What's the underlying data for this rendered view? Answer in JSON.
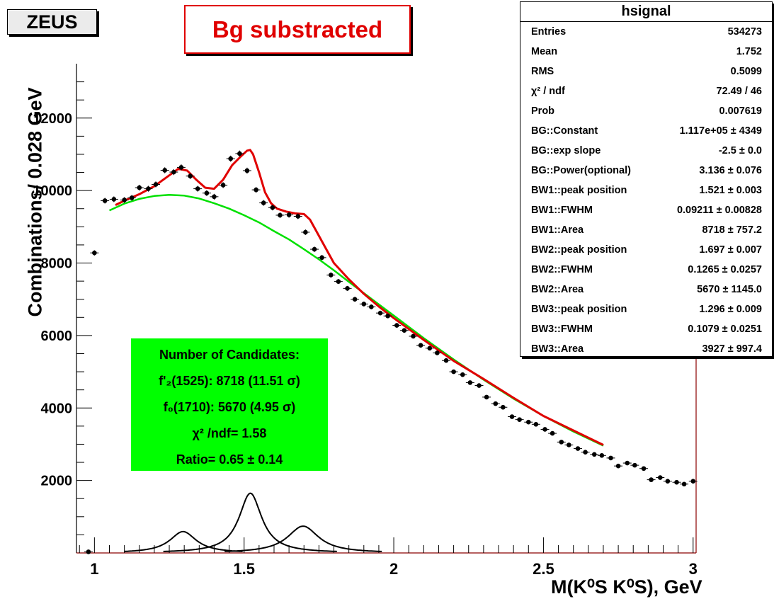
{
  "experiment_label": "ZEUS",
  "title": "Bg substracted",
  "stats_box": {
    "name": "hsignal",
    "rows": [
      {
        "key": "Entries",
        "value": "534273"
      },
      {
        "key": "Mean",
        "value": "1.752"
      },
      {
        "key": "RMS",
        "value": "0.5099"
      },
      {
        "key": "χ² / ndf",
        "value": "72.49 / 46"
      },
      {
        "key": "Prob",
        "value": "0.007619"
      },
      {
        "key": "BG::Constant",
        "value": "1.117e+05 ± 4349"
      },
      {
        "key": "BG::exp slope",
        "value": "-2.5 ± 0.0"
      },
      {
        "key": "BG::Power(optional)",
        "value": "3.136 ± 0.076"
      },
      {
        "key": "BW1::peak position",
        "value": "1.521 ± 0.003"
      },
      {
        "key": "BW1::FWHM",
        "value": "0.09211 ± 0.00828"
      },
      {
        "key": "BW1::Area",
        "value": "8718 ± 757.2"
      },
      {
        "key": "BW2::peak position",
        "value": "1.697 ± 0.007"
      },
      {
        "key": "BW2::FWHM",
        "value": "0.1265 ± 0.0257"
      },
      {
        "key": "BW2::Area",
        "value": "5670 ± 1145.0"
      },
      {
        "key": "BW3::peak position",
        "value": "1.296 ± 0.009"
      },
      {
        "key": "BW3::FWHM",
        "value": "0.1079 ± 0.0251"
      },
      {
        "key": "BW3::Area",
        "value": "3927 ± 997.4"
      }
    ]
  },
  "candidates_box": {
    "heading": "Number of Candidates:",
    "line1": "f'₂(1525): 8718 (11.51 σ)",
    "line2": "f₀(1710): 5670 (4.95 σ)",
    "line3": "χ² /ndf= 1.58",
    "line4": "Ratio= 0.65 ± 0.14"
  },
  "chart_data": {
    "type": "scatter",
    "title": "Bg substracted",
    "xlabel": "M(K⁰S K⁰S), GeV",
    "ylabel": "Combinations/ 0.028 GeV",
    "xlim": [
      0.94,
      3.01
    ],
    "ylim": [
      0,
      13500
    ],
    "x_ticks": [
      1,
      1.5,
      2,
      2.5,
      3
    ],
    "x_tick_labels": [
      "1",
      "1.5",
      "2",
      "2.5",
      "3"
    ],
    "y_ticks": [
      2000,
      4000,
      6000,
      8000,
      10000,
      12000
    ],
    "y_tick_labels": [
      "2000",
      "4000",
      "6000",
      "8000",
      "10000",
      "12000"
    ],
    "colors": {
      "data": "#000000",
      "total_fit": "#e00000",
      "background_fit": "#00e000",
      "peak_components": "#000000",
      "frame_accent": "#8b0000"
    },
    "series": [
      {
        "style": "points with error bars",
        "x": [
          0.98,
          1.0,
          1.035,
          1.065,
          1.1,
          1.125,
          1.15,
          1.18,
          1.205,
          1.235,
          1.265,
          1.29,
          1.32,
          1.345,
          1.375,
          1.4,
          1.43,
          1.455,
          1.485,
          1.51,
          1.54,
          1.565,
          1.595,
          1.62,
          1.65,
          1.68,
          1.705,
          1.735,
          1.76,
          1.79,
          1.815,
          1.845,
          1.87,
          1.9,
          1.925,
          1.955,
          1.98,
          2.01,
          2.035,
          2.065,
          2.09,
          2.12,
          2.145,
          2.175,
          2.2,
          2.23,
          2.255,
          2.285,
          2.31,
          2.34,
          2.365,
          2.395,
          2.42,
          2.45,
          2.475,
          2.505,
          2.53,
          2.56,
          2.585,
          2.615,
          2.64,
          2.67,
          2.695,
          2.725,
          2.75,
          2.78,
          2.805,
          2.835,
          2.86,
          2.89,
          2.915,
          2.945,
          2.97,
          3.0
        ],
        "y": [
          30,
          8280,
          9720,
          9760,
          9740,
          9800,
          10080,
          10050,
          10170,
          10560,
          10510,
          10640,
          10400,
          10050,
          9930,
          9830,
          10150,
          10880,
          11020,
          10550,
          10020,
          9660,
          9530,
          9320,
          9330,
          9290,
          8850,
          8380,
          8150,
          7670,
          7490,
          7300,
          7000,
          6870,
          6790,
          6620,
          6540,
          6280,
          6140,
          5980,
          5730,
          5650,
          5520,
          5310,
          5000,
          4920,
          4700,
          4620,
          4300,
          4120,
          4020,
          3760,
          3680,
          3610,
          3550,
          3410,
          3300,
          3060,
          2980,
          2880,
          2780,
          2720,
          2690,
          2620,
          2400,
          2480,
          2420,
          2330,
          2020,
          2080,
          1980,
          1950,
          1900,
          1980
        ]
      },
      {
        "style": "line",
        "x": [
          1.07,
          1.1,
          1.15,
          1.2,
          1.25,
          1.28,
          1.31,
          1.34,
          1.37,
          1.4,
          1.43,
          1.46,
          1.49,
          1.51,
          1.52,
          1.53,
          1.55,
          1.57,
          1.59,
          1.61,
          1.64,
          1.67,
          1.7,
          1.72,
          1.74,
          1.77,
          1.8,
          1.85,
          1.9,
          1.95,
          2.0,
          2.1,
          2.2,
          2.3,
          2.4,
          2.5,
          2.6,
          2.7
        ],
        "y": [
          9600,
          9720,
          9900,
          10120,
          10420,
          10600,
          10550,
          10300,
          10080,
          10050,
          10300,
          10700,
          10950,
          11100,
          11120,
          11000,
          10500,
          9950,
          9650,
          9500,
          9420,
          9370,
          9350,
          9200,
          8900,
          8450,
          8000,
          7550,
          7150,
          6800,
          6480,
          5880,
          5300,
          4800,
          4280,
          3780,
          3380,
          2980
        ]
      },
      {
        "style": "line",
        "x": [
          1.05,
          1.1,
          1.15,
          1.2,
          1.25,
          1.3,
          1.35,
          1.4,
          1.45,
          1.5,
          1.55,
          1.6,
          1.65,
          1.7,
          1.75,
          1.8,
          1.85,
          1.9,
          1.95,
          2.0,
          2.1,
          2.2,
          2.3,
          2.4,
          2.5,
          2.6,
          2.7
        ],
        "y": [
          9450,
          9640,
          9770,
          9850,
          9880,
          9860,
          9780,
          9650,
          9500,
          9320,
          9120,
          8880,
          8650,
          8380,
          8100,
          7800,
          7480,
          7170,
          6860,
          6550,
          5930,
          5340,
          4780,
          4260,
          3780,
          3350,
          2960
        ]
      },
      {
        "style": "line",
        "peak": 1.296,
        "fwhm": 0.1079,
        "amplitude": 590
      },
      {
        "style": "line",
        "peak": 1.521,
        "fwhm": 0.09211,
        "amplitude": 1650
      },
      {
        "style": "line",
        "peak": 1.697,
        "fwhm": 0.1265,
        "amplitude": 740
      }
    ]
  }
}
